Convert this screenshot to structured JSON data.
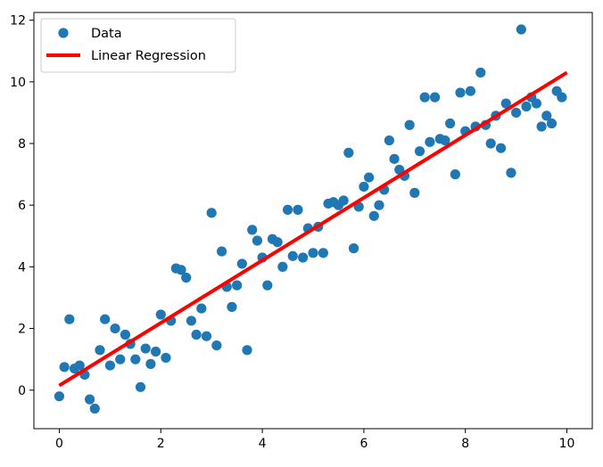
{
  "chart_data": {
    "type": "scatter",
    "title": "",
    "xlabel": "",
    "ylabel": "",
    "xlim": [
      -0.5,
      10.5
    ],
    "ylim": [
      -1.25,
      12.25
    ],
    "x_ticks": [
      0,
      2,
      4,
      6,
      8,
      10
    ],
    "y_ticks": [
      0,
      2,
      4,
      6,
      8,
      10,
      12
    ],
    "grid": false,
    "legend_position": "top-left",
    "series": [
      {
        "name": "Data",
        "kind": "scatter",
        "color": "#1f77b4",
        "points": [
          [
            0.0,
            -0.2
          ],
          [
            0.1,
            0.75
          ],
          [
            0.2,
            2.3
          ],
          [
            0.3,
            0.7
          ],
          [
            0.4,
            0.8
          ],
          [
            0.5,
            0.5
          ],
          [
            0.6,
            -0.3
          ],
          [
            0.7,
            -0.6
          ],
          [
            0.8,
            1.3
          ],
          [
            0.9,
            2.3
          ],
          [
            1.0,
            0.8
          ],
          [
            1.1,
            2.0
          ],
          [
            1.2,
            1.0
          ],
          [
            1.3,
            1.8
          ],
          [
            1.4,
            1.5
          ],
          [
            1.5,
            1.0
          ],
          [
            1.6,
            0.1
          ],
          [
            1.7,
            1.35
          ],
          [
            1.8,
            0.85
          ],
          [
            1.9,
            1.25
          ],
          [
            2.0,
            2.45
          ],
          [
            2.1,
            1.05
          ],
          [
            2.2,
            2.25
          ],
          [
            2.3,
            3.95
          ],
          [
            2.4,
            3.9
          ],
          [
            2.5,
            3.65
          ],
          [
            2.6,
            2.25
          ],
          [
            2.7,
            1.8
          ],
          [
            2.8,
            2.65
          ],
          [
            2.9,
            1.75
          ],
          [
            3.0,
            5.75
          ],
          [
            3.1,
            1.45
          ],
          [
            3.2,
            4.5
          ],
          [
            3.3,
            3.35
          ],
          [
            3.4,
            2.7
          ],
          [
            3.5,
            3.4
          ],
          [
            3.6,
            4.1
          ],
          [
            3.7,
            1.3
          ],
          [
            3.8,
            5.2
          ],
          [
            3.9,
            4.85
          ],
          [
            4.0,
            4.3
          ],
          [
            4.1,
            3.4
          ],
          [
            4.2,
            4.9
          ],
          [
            4.3,
            4.8
          ],
          [
            4.4,
            4.0
          ],
          [
            4.5,
            5.85
          ],
          [
            4.6,
            4.35
          ],
          [
            4.7,
            5.85
          ],
          [
            4.8,
            4.3
          ],
          [
            4.9,
            5.25
          ],
          [
            5.0,
            4.45
          ],
          [
            5.1,
            5.3
          ],
          [
            5.2,
            4.45
          ],
          [
            5.3,
            6.05
          ],
          [
            5.4,
            6.1
          ],
          [
            5.5,
            6.0
          ],
          [
            5.6,
            6.15
          ],
          [
            5.7,
            7.7
          ],
          [
            5.8,
            4.6
          ],
          [
            5.9,
            5.95
          ],
          [
            6.0,
            6.6
          ],
          [
            6.1,
            6.9
          ],
          [
            6.2,
            5.65
          ],
          [
            6.3,
            6.0
          ],
          [
            6.4,
            6.5
          ],
          [
            6.5,
            8.1
          ],
          [
            6.6,
            7.5
          ],
          [
            6.7,
            7.15
          ],
          [
            6.8,
            6.95
          ],
          [
            6.9,
            8.6
          ],
          [
            7.0,
            6.4
          ],
          [
            7.1,
            7.75
          ],
          [
            7.2,
            9.5
          ],
          [
            7.3,
            8.05
          ],
          [
            7.4,
            9.5
          ],
          [
            7.5,
            8.15
          ],
          [
            7.6,
            8.1
          ],
          [
            7.7,
            8.65
          ],
          [
            7.8,
            7.0
          ],
          [
            7.9,
            9.65
          ],
          [
            8.0,
            8.4
          ],
          [
            8.1,
            9.7
          ],
          [
            8.2,
            8.55
          ],
          [
            8.3,
            10.3
          ],
          [
            8.4,
            8.6
          ],
          [
            8.5,
            8.0
          ],
          [
            8.6,
            8.9
          ],
          [
            8.7,
            7.85
          ],
          [
            8.8,
            9.3
          ],
          [
            8.9,
            7.05
          ],
          [
            9.0,
            9.0
          ],
          [
            9.1,
            11.7
          ],
          [
            9.2,
            9.2
          ],
          [
            9.3,
            9.5
          ],
          [
            9.4,
            9.3
          ],
          [
            9.5,
            8.55
          ],
          [
            9.6,
            8.9
          ],
          [
            9.7,
            8.65
          ],
          [
            9.8,
            9.7
          ],
          [
            9.9,
            9.5
          ]
        ]
      },
      {
        "name": "Linear Regression",
        "kind": "line",
        "color": "#ff0000",
        "points": [
          [
            0,
            0.15
          ],
          [
            10,
            10.3
          ]
        ]
      }
    ]
  }
}
